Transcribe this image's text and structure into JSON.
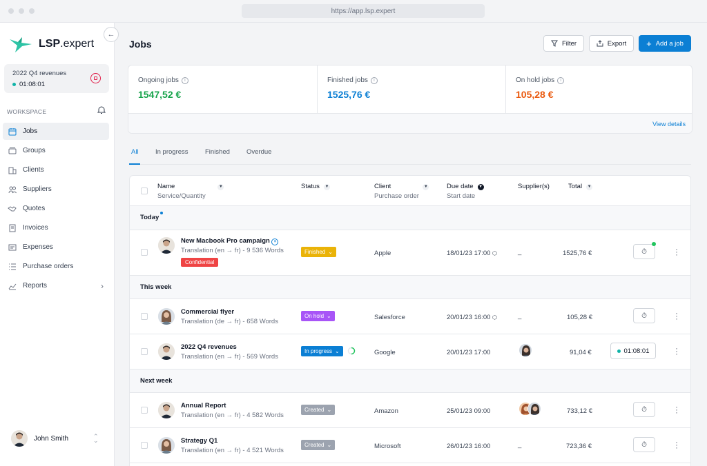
{
  "browser": {
    "url": "https://app.lsp.expert"
  },
  "brand": {
    "name_bold": "LSP",
    "name_rest": ".expert",
    "color": "#2ec4a6"
  },
  "sidebar": {
    "revenue_card": {
      "title": "2022 Q4 revenues",
      "timer": "01:08:01"
    },
    "workspace_label": "WORKSPACE",
    "items": [
      {
        "label": "Jobs",
        "icon": "calendar-icon",
        "active": true
      },
      {
        "label": "Groups",
        "icon": "folders-icon"
      },
      {
        "label": "Clients",
        "icon": "building-icon"
      },
      {
        "label": "Suppliers",
        "icon": "users-icon"
      },
      {
        "label": "Quotes",
        "icon": "handshake-icon"
      },
      {
        "label": "Invoices",
        "icon": "invoice-icon"
      },
      {
        "label": "Expenses",
        "icon": "expenses-icon"
      },
      {
        "label": "Purchase orders",
        "icon": "list-icon"
      },
      {
        "label": "Reports",
        "icon": "chart-icon"
      }
    ],
    "user": {
      "name": "John Smith"
    }
  },
  "header": {
    "title": "Jobs",
    "filter_label": "Filter",
    "export_label": "Export",
    "add_label": "Add a job"
  },
  "stats": {
    "ongoing": {
      "label": "Ongoing jobs",
      "value": "1547,52 €",
      "color": "#16a34a"
    },
    "finished": {
      "label": "Finished jobs",
      "value": "1525,76 €",
      "color": "#0b7fd4"
    },
    "on_hold": {
      "label": "On hold jobs",
      "value": "105,28 €",
      "color": "#ea580c"
    },
    "view_details": "View details"
  },
  "tabs": [
    "All",
    "In progress",
    "Finished",
    "Overdue"
  ],
  "table": {
    "headers": {
      "name": "Name",
      "name_sub": "Service/Quantity",
      "status": "Status",
      "client": "Client",
      "client_sub": "Purchase order",
      "due": "Due date",
      "due_sub": "Start date",
      "suppliers": "Supplier(s)",
      "total": "Total"
    },
    "groups": {
      "today": "Today",
      "this_week": "This week",
      "next_week": "Next week"
    },
    "rows": [
      {
        "name": "New Macbook Pro campaign",
        "sub": "Translation (en → fr) - 9 536 Words",
        "tag": "Confidential",
        "status": "Finished",
        "status_color": "#eab308",
        "client": "Apple",
        "due": "18/01/23 17:00",
        "suppliers": "_",
        "total": "1525,76 €"
      },
      {
        "name": "Commercial flyer",
        "sub": "Translation (de → fr) - 658 Words",
        "status": "On hold",
        "status_color": "#a855f7",
        "client": "Salesforce",
        "due": "20/01/23 16:00",
        "suppliers": "_",
        "total": "105,28 €"
      },
      {
        "name": "2022 Q4 revenues",
        "sub": "Translation (en → fr) - 569 Words",
        "status": "In progress",
        "status_color": "#0b7fd4",
        "client": "Google",
        "due": "20/01/23 17:00",
        "total": "91,04 €",
        "timer": "01:08:01"
      },
      {
        "name": "Annual Report",
        "sub": "Translation (en → fr) - 4 582 Words",
        "status": "Created",
        "status_color": "#9ca3af",
        "client": "Amazon",
        "due": "25/01/23 09:00",
        "total": "733,12 €"
      },
      {
        "name": "Strategy Q1",
        "sub": "Translation (en → fr) - 4 521 Words",
        "status": "Created",
        "status_color": "#9ca3af",
        "client": "Microsoft",
        "due": "26/01/23 16:00",
        "suppliers": "_",
        "total": "723,36 €"
      }
    ]
  }
}
